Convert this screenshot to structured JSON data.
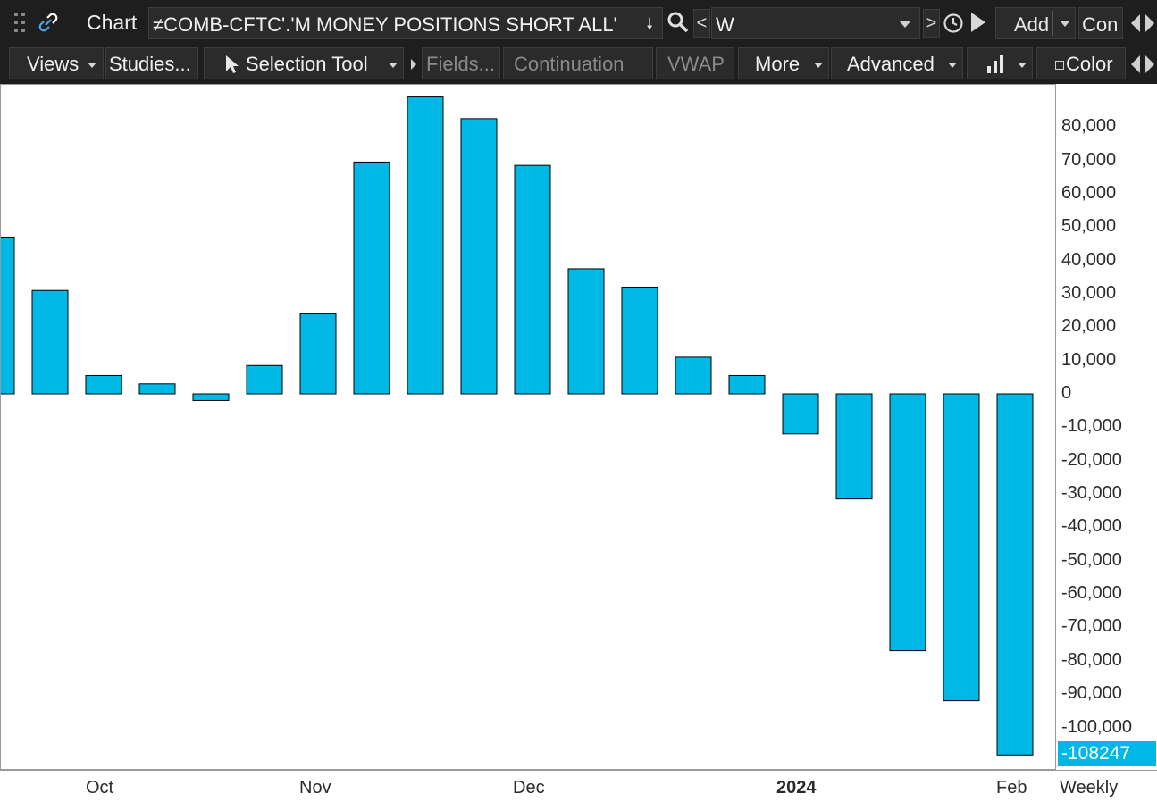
{
  "header": {
    "title": "Chart",
    "symbol": "≠COMB-CFTC'.'M MONEY POSITIONS SHORT ALL'",
    "nav_left": "<",
    "period": "W",
    "nav_right": ">",
    "add_label": "Add",
    "con_label": "Con"
  },
  "toolbar": {
    "views": "Views",
    "studies": "Studies...",
    "selection_tool": "Selection Tool",
    "fields": "Fields...",
    "continuation": "Continuation",
    "vwap": "VWAP",
    "more": "More",
    "advanced": "Advanced",
    "color": "Color"
  },
  "icons": {
    "grip": "drag-grip-icon",
    "link": "link-icon",
    "search": "search-icon",
    "clock": "clock-icon",
    "play": "play-icon",
    "chart_style": "bar-chart-icon",
    "scroll": "scroll-arrows-icon"
  },
  "colors": {
    "bar_fill": "#00b8e6",
    "bar_stroke": "#000000",
    "last_badge": "#00b8e6"
  },
  "chart_data": {
    "type": "bar",
    "ylim": [
      -108247,
      89000
    ],
    "yticks": [
      80000,
      70000,
      60000,
      50000,
      40000,
      30000,
      20000,
      10000,
      0,
      -10000,
      -20000,
      -30000,
      -40000,
      -50000,
      -60000,
      -70000,
      -80000,
      -90000,
      -100000
    ],
    "ytick_labels": [
      "80,000",
      "70,000",
      "60,000",
      "50,000",
      "40,000",
      "30,000",
      "20,000",
      "10,000",
      "0",
      "-10,000",
      "-20,000",
      "-30,000",
      "-40,000",
      "-50,000",
      "-60,000",
      "-70,000",
      "-80,000",
      "-90,000",
      "-100,000"
    ],
    "values": [
      47000,
      31000,
      5500,
      3000,
      -2000,
      8500,
      24000,
      69500,
      89000,
      82500,
      68500,
      37500,
      32000,
      11000,
      5500,
      -12000,
      -31500,
      -77000,
      -92000,
      -108247
    ],
    "xtick_labels": [
      {
        "label": "Oct",
        "bold": false
      },
      {
        "label": "Nov",
        "bold": false
      },
      {
        "label": "Dec",
        "bold": false
      },
      {
        "label": "2024",
        "bold": true
      },
      {
        "label": "Feb",
        "bold": false
      }
    ],
    "period_label": "Weekly",
    "last_value_label": "-108247"
  }
}
